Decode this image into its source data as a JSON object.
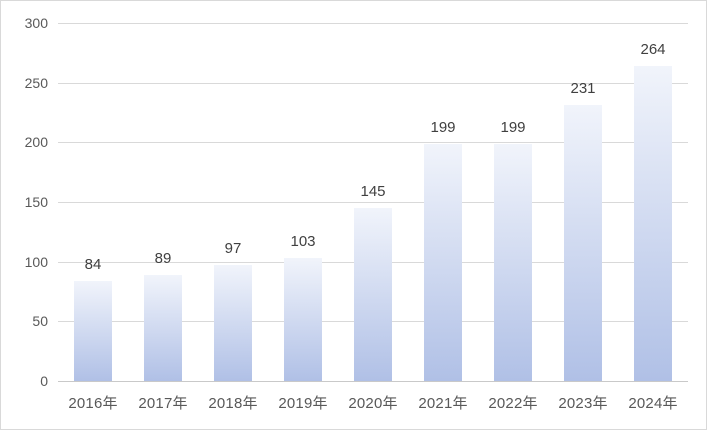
{
  "chart_data": {
    "type": "bar",
    "categories": [
      "2016年",
      "2017年",
      "2018年",
      "2019年",
      "2020年",
      "2021年",
      "2022年",
      "2023年",
      "2024年"
    ],
    "values": [
      84,
      89,
      97,
      103,
      145,
      199,
      199,
      231,
      264
    ],
    "title": "",
    "xlabel": "",
    "ylabel": "",
    "ylim": [
      0,
      300
    ],
    "ytick_step": 50,
    "ytick_labels": [
      "0",
      "50",
      "100",
      "150",
      "200",
      "250",
      "300"
    ],
    "grid": true,
    "legend_position": "none",
    "data_labels": "outside-end"
  },
  "colors": {
    "background": "#ffffff",
    "frame_border": "#d9d9d9",
    "gridline": "#d9d9d9",
    "axis_line": "#c9c9c9",
    "tick_label": "#595959",
    "data_label": "#404040",
    "bar_gradient_top": "#f1f4fb",
    "bar_gradient_bottom": "#b0c0e6"
  }
}
